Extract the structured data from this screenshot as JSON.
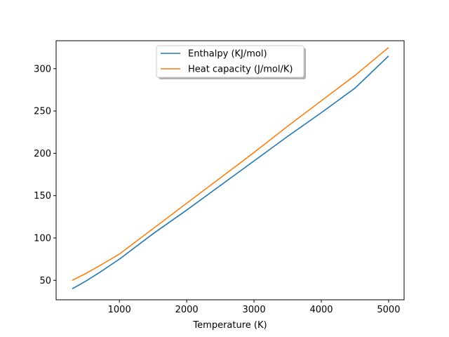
{
  "chart_data": {
    "type": "line",
    "title": "",
    "xlabel": "Temperature (K)",
    "ylabel": "",
    "xlim": [
      60,
      5230
    ],
    "ylim": [
      27,
      333
    ],
    "xticks": [
      1000,
      2000,
      3000,
      4000,
      5000
    ],
    "yticks": [
      50,
      100,
      150,
      200,
      250,
      300
    ],
    "grid": false,
    "legend": "upper center",
    "series": [
      {
        "name": "Enthalpy (KJ/mol)",
        "color": "#1f77b4",
        "x": [
          300,
          500,
          700,
          1000,
          1250,
          1500,
          2000,
          2500,
          3000,
          3500,
          4000,
          4500,
          5000
        ],
        "y": [
          40,
          49,
          59,
          75,
          90,
          105,
          133,
          162,
          191,
          220,
          248,
          277,
          315
        ]
      },
      {
        "name": "Heat capacity (J/mol/K)",
        "color": "#ff7f0e",
        "x": [
          300,
          500,
          700,
          1000,
          1250,
          1500,
          2000,
          2500,
          3000,
          3500,
          4000,
          4500,
          5000
        ],
        "y": [
          50,
          58,
          67,
          81,
          96,
          111,
          141,
          171,
          201,
          232,
          262,
          292,
          325
        ]
      }
    ]
  }
}
